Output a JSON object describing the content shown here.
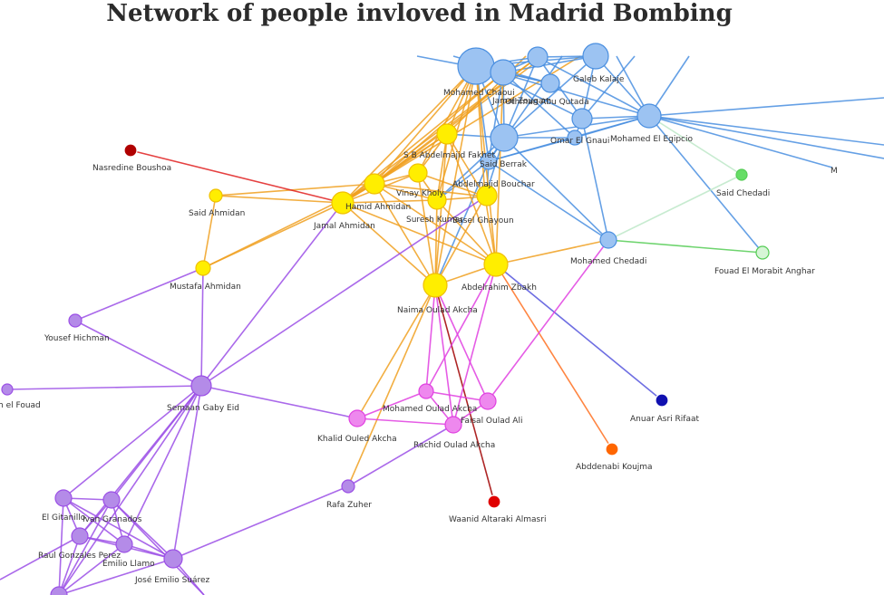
{
  "title": "Network of people invloved in Madrid Bombing",
  "group_colors": {
    "blue": "#4a8fe0",
    "blue_node": "#9cc3f2",
    "orange_edge": "#f0a020",
    "yellow": "#ffee00",
    "purple": "#9b4fe6",
    "purple_node": "#b48be8",
    "magenta": "#e040e0",
    "magenta_node": "#ee88ee",
    "red": "#e02020",
    "darkred": "#a00000",
    "green": "#66dd66",
    "lightgreen": "#bde8c8",
    "navy": "#1010b0",
    "orange": "#ff6600"
  },
  "nodes": [
    {
      "id": "mohamed_chaoui",
      "label": "Mohamed Chaoui",
      "fill": "#9cc3f2"
    },
    {
      "id": "jamal_zougam",
      "label": "Jamal Zougam",
      "fill": "#9cc3f2"
    },
    {
      "id": "othman_abu_qutada",
      "label": "Othman Abu Qutada",
      "fill": "#9cc3f2"
    },
    {
      "id": "galeb_kalaje",
      "label": "Galeb Kalaje",
      "fill": "#9cc3f2"
    },
    {
      "id": "top_blue",
      "label": "",
      "fill": "#9cc3f2"
    },
    {
      "id": "blue_mid",
      "label": "",
      "fill": "#9cc3f2"
    },
    {
      "id": "omar_el_gnaui",
      "label": "Omar El Gnaui",
      "fill": "#9cc3f2"
    },
    {
      "id": "mohamed_el_egipcio",
      "label": "Mohamed El Egipcio",
      "fill": "#9cc3f2"
    },
    {
      "id": "blue_center",
      "label": "",
      "fill": "#9cc3f2"
    },
    {
      "id": "said_berrak",
      "label": "Said Berrak",
      "fill": "#9cc3f2"
    },
    {
      "id": "mohamed_chedadi",
      "label": "Mohamed Chedadi",
      "fill": "#9cc3f2"
    },
    {
      "id": "said_chedadi",
      "label": "Said Chedadi",
      "fill": "#66dd66"
    },
    {
      "id": "fouad_el_morabit_anghar",
      "label": "Fouad El Morabit Anghar",
      "fill": "#d6f5d6"
    },
    {
      "id": "nasredine_boushoa",
      "label": "Nasredine Boushoa",
      "fill": "#b00000"
    },
    {
      "id": "sb_abdelmajid_fakhet",
      "label": "S B Abdelmajid Fakhet",
      "fill": "#ffee00"
    },
    {
      "id": "hamid_ahmidan",
      "label": "Hamid Ahmidan",
      "fill": "#ffee00"
    },
    {
      "id": "vinay_kholy",
      "label": "Vinay Kholy",
      "fill": "#ffee00"
    },
    {
      "id": "abdelmajid_bouchar",
      "label": "Abdelmajid Bouchar",
      "fill": "#ffee00"
    },
    {
      "id": "jamal_ahmidan",
      "label": "Jamal Ahmidan",
      "fill": "#ffee00"
    },
    {
      "id": "suresh_kumar",
      "label": "Suresh Kumar",
      "fill": "#ffee00"
    },
    {
      "id": "basel_ghayoun",
      "label": "Basel Ghayoun",
      "fill": "#ffee00"
    },
    {
      "id": "said_ahmidan",
      "label": "Said Ahmidan",
      "fill": "#ffee00"
    },
    {
      "id": "mustafa_ahmidan",
      "label": "Mustafa Ahmidan",
      "fill": "#ffee00"
    },
    {
      "id": "abdelrahim_zbakh",
      "label": "Abdelrahim Zbakh",
      "fill": "#ffee00"
    },
    {
      "id": "naima_oulad_akcha",
      "label": "Naima Oulad Akcha",
      "fill": "#ffee00"
    },
    {
      "id": "yousef_hichman",
      "label": "Yousef Hichman",
      "fill": "#b48be8"
    },
    {
      "id": "semaan_gaby_eid",
      "label": "Semaan Gaby Eid",
      "fill": "#b48be8"
    },
    {
      "id": "left_edge",
      "label": "h el Fouad",
      "fill": "#b48be8"
    },
    {
      "id": "mohamed_oulad_akcha",
      "label": "Mohamed Oulad Akcha",
      "fill": "#ee88ee"
    },
    {
      "id": "faisal_oulad_ali",
      "label": "Faisal Oulad Ali",
      "fill": "#ee88ee"
    },
    {
      "id": "khalid_ouled_akcha",
      "label": "Khalid Ouled Akcha",
      "fill": "#ee88ee"
    },
    {
      "id": "rachid_oulad_akcha",
      "label": "Rachid Oulad Akcha",
      "fill": "#ee88ee"
    },
    {
      "id": "anuar_asri_rifaat",
      "label": "Anuar Asri Rifaat",
      "fill": "#1010b0"
    },
    {
      "id": "abddenabi_koujma",
      "label": "Abddenabi Koujma",
      "fill": "#ff6600"
    },
    {
      "id": "rafa_zuher",
      "label": "Rafa Zuher",
      "fill": "#b48be8"
    },
    {
      "id": "waanid_altaraki_almasri",
      "label": "Waanid Altaraki Almasri",
      "fill": "#e00000"
    },
    {
      "id": "el_gitanillo",
      "label": "El Gitanillo",
      "fill": "#b48be8"
    },
    {
      "id": "ivan_granados",
      "label": "Ivan Granados",
      "fill": "#b48be8"
    },
    {
      "id": "raul_gonzales_perez",
      "label": "Raul Gonzales Perez",
      "fill": "#b48be8"
    },
    {
      "id": "emilio_llamo",
      "label": "Emilio Llamo",
      "fill": "#b48be8"
    },
    {
      "id": "jose_emilio_suarez",
      "label": "José Emilio Suárez",
      "fill": "#b48be8"
    },
    {
      "id": "bottom_left",
      "label": "",
      "fill": "#b48be8"
    },
    {
      "id": "offscreen_right",
      "label": "M",
      "fill": "#9cc3f2"
    }
  ],
  "edges": [
    [
      "mohamed_chaoui",
      "jamal_zougam",
      "#4a8fe0"
    ],
    [
      "mohamed_chaoui",
      "othman_abu_qutada",
      "#4a8fe0"
    ],
    [
      "mohamed_chaoui",
      "galeb_kalaje",
      "#4a8fe0"
    ],
    [
      "mohamed_chaoui",
      "top_blue",
      "#4a8fe0"
    ],
    [
      "mohamed_chaoui",
      "blue_mid",
      "#4a8fe0"
    ],
    [
      "mohamed_chaoui",
      "blue_center",
      "#4a8fe0"
    ],
    [
      "mohamed_chaoui",
      "mohamed_el_egipcio",
      "#4a8fe0"
    ],
    [
      "mohamed_chaoui",
      "said_berrak",
      "#4a8fe0"
    ],
    [
      "jamal_zougam",
      "blue_center",
      "#4a8fe0"
    ],
    [
      "jamal_zougam",
      "othman_abu_qutada",
      "#4a8fe0"
    ],
    [
      "jamal_zougam",
      "galeb_kalaje",
      "#4a8fe0"
    ],
    [
      "jamal_zougam",
      "omar_el_gnaui",
      "#4a8fe0"
    ],
    [
      "jamal_zougam",
      "said_berrak",
      "#4a8fe0"
    ],
    [
      "jamal_zougam",
      "top_blue",
      "#4a8fe0"
    ],
    [
      "top_blue",
      "galeb_kalaje",
      "#4a8fe0"
    ],
    [
      "top_blue",
      "blue_mid",
      "#4a8fe0"
    ],
    [
      "top_blue",
      "mohamed_el_egipcio",
      "#4a8fe0"
    ],
    [
      "top_blue",
      "blue_center",
      "#4a8fe0"
    ],
    [
      "galeb_kalaje",
      "blue_mid",
      "#4a8fe0"
    ],
    [
      "galeb_kalaje",
      "mohamed_el_egipcio",
      "#4a8fe0"
    ],
    [
      "galeb_kalaje",
      "blue_center",
      "#4a8fe0"
    ],
    [
      "blue_mid",
      "omar_el_gnaui",
      "#4a8fe0"
    ],
    [
      "blue_mid",
      "mohamed_el_egipcio",
      "#4a8fe0"
    ],
    [
      "blue_mid",
      "mohamed_chedadi",
      "#4a8fe0"
    ],
    [
      "omar_el_gnaui",
      "mohamed_el_egipcio",
      "#4a8fe0"
    ],
    [
      "omar_el_gnaui",
      "blue_center",
      "#4a8fe0"
    ],
    [
      "omar_el_gnaui",
      "said_berrak",
      "#4a8fe0"
    ],
    [
      "mohamed_el_egipcio",
      "blue_center",
      "#4a8fe0"
    ],
    [
      "mohamed_el_egipcio",
      "offscreen_right",
      "#4a8fe0"
    ],
    [
      "mohamed_el_egipcio",
      "fouad_el_morabit_anghar",
      "#4a8fe0"
    ],
    [
      "mohamed_el_egipcio",
      "said_berrak",
      "#4a8fe0"
    ],
    [
      "blue_center",
      "said_berrak",
      "#4a8fe0"
    ],
    [
      "blue_center",
      "mohamed_chedadi",
      "#4a8fe0"
    ],
    [
      "blue_center",
      "sb_abdelmajid_fakhet",
      "#4a8fe0"
    ],
    [
      "blue_center",
      "basel_ghayoun",
      "#4a8fe0"
    ],
    [
      "blue_center",
      "suresh_kumar",
      "#4a8fe0"
    ],
    [
      "said_berrak",
      "mohamed_chedadi",
      "#4a8fe0"
    ],
    [
      "said_berrak",
      "suresh_kumar",
      "#4a8fe0"
    ],
    [
      "said_berrak",
      "naima_oulad_akcha",
      "#4a8fe0"
    ],
    [
      "said_berrak",
      "abdelmajid_bouchar",
      "#4a8fe0"
    ],
    [
      "mohamed_chedadi",
      "said_chedadi",
      "#bde8c8"
    ],
    [
      "mohamed_chedadi",
      "fouad_el_morabit_anghar",
      "#55cc55"
    ],
    [
      "mohamed_el_egipcio",
      "said_chedadi",
      "#bde8c8"
    ],
    [
      "mohamed_chaoui",
      "sb_abdelmajid_fakhet",
      "#f0a020"
    ],
    [
      "mohamed_chaoui",
      "hamid_ahmidan",
      "#f0a020"
    ],
    [
      "mohamed_chaoui",
      "jamal_ahmidan",
      "#f0a020"
    ],
    [
      "mohamed_chaoui",
      "vinay_kholy",
      "#f0a020"
    ],
    [
      "mohamed_chaoui",
      "abdelrahim_zbakh",
      "#f0a020"
    ],
    [
      "mohamed_chaoui",
      "naima_oulad_akcha",
      "#f0a020"
    ],
    [
      "mohamed_chaoui",
      "basel_ghayoun",
      "#f0a020"
    ],
    [
      "mohamed_chaoui",
      "suresh_kumar",
      "#f0a020"
    ],
    [
      "jamal_zougam",
      "hamid_ahmidan",
      "#f0a020"
    ],
    [
      "jamal_zougam",
      "jamal_ahmidan",
      "#f0a020"
    ],
    [
      "jamal_zougam",
      "abdelrahim_zbakh",
      "#f0a020"
    ],
    [
      "top_blue",
      "hamid_ahmidan",
      "#f0a020"
    ],
    [
      "top_blue",
      "jamal_ahmidan",
      "#f0a020"
    ],
    [
      "sb_abdelmajid_fakhet",
      "hamid_ahmidan",
      "#f0a020"
    ],
    [
      "sb_abdelmajid_fakhet",
      "jamal_ahmidan",
      "#f0a020"
    ],
    [
      "sb_abdelmajid_fakhet",
      "vinay_kholy",
      "#f0a020"
    ],
    [
      "sb_abdelmajid_fakhet",
      "suresh_kumar",
      "#f0a020"
    ],
    [
      "sb_abdelmajid_fakhet",
      "basel_ghayoun",
      "#f0a020"
    ],
    [
      "sb_abdelmajid_fakhet",
      "abdelrahim_zbakh",
      "#f0a020"
    ],
    [
      "sb_abdelmajid_fakhet",
      "naima_oulad_akcha",
      "#f0a020"
    ],
    [
      "hamid_ahmidan",
      "jamal_ahmidan",
      "#f0a020"
    ],
    [
      "hamid_ahmidan",
      "vinay_kholy",
      "#f0a020"
    ],
    [
      "hamid_ahmidan",
      "suresh_kumar",
      "#f0a020"
    ],
    [
      "hamid_ahmidan",
      "naima_oulad_akcha",
      "#f0a020"
    ],
    [
      "hamid_ahmidan",
      "abdelrahim_zbakh",
      "#f0a020"
    ],
    [
      "hamid_ahmidan",
      "basel_ghayoun",
      "#f0a020"
    ],
    [
      "vinay_kholy",
      "suresh_kumar",
      "#f0a020"
    ],
    [
      "vinay_kholy",
      "basel_ghayoun",
      "#f0a020"
    ],
    [
      "vinay_kholy",
      "naima_oulad_akcha",
      "#f0a020"
    ],
    [
      "vinay_kholy",
      "jamal_ahmidan",
      "#f0a020"
    ],
    [
      "jamal_ahmidan",
      "suresh_kumar",
      "#f0a020"
    ],
    [
      "jamal_ahmidan",
      "said_ahmidan",
      "#f0a020"
    ],
    [
      "jamal_ahmidan",
      "mustafa_ahmidan",
      "#f0a020"
    ],
    [
      "jamal_ahmidan",
      "naima_oulad_akcha",
      "#f0a020"
    ],
    [
      "jamal_ahmidan",
      "abdelrahim_zbakh",
      "#f0a020"
    ],
    [
      "suresh_kumar",
      "basel_ghayoun",
      "#f0a020"
    ],
    [
      "suresh_kumar",
      "naima_oulad_akcha",
      "#f0a020"
    ],
    [
      "suresh_kumar",
      "abdelrahim_zbakh",
      "#f0a020"
    ],
    [
      "basel_ghayoun",
      "abdelrahim_zbakh",
      "#f0a020"
    ],
    [
      "basel_ghayoun",
      "naima_oulad_akcha",
      "#f0a020"
    ],
    [
      "abdelrahim_zbakh",
      "naima_oulad_akcha",
      "#f0a020"
    ],
    [
      "abdelrahim_zbakh",
      "mohamed_chedadi",
      "#f0a020"
    ],
    [
      "said_ahmidan",
      "mustafa_ahmidan",
      "#f0a020"
    ],
    [
      "said_ahmidan",
      "hamid_ahmidan",
      "#f0a020"
    ],
    [
      "mustafa_ahmidan",
      "hamid_ahmidan",
      "#f0a020"
    ],
    [
      "naima_oulad_akcha",
      "khalid_ouled_akcha",
      "#f0a020"
    ],
    [
      "naima_oulad_akcha",
      "rafa_zuher",
      "#f0a020"
    ],
    [
      "abdelrahim_zbakh",
      "abddenabi_koujma",
      "#ff7020"
    ],
    [
      "nasredine_boushoa",
      "jamal_ahmidan",
      "#e02020"
    ],
    [
      "naima_oulad_akcha",
      "waanid_altaraki_almasri",
      "#a00000"
    ],
    [
      "abdelrahim_zbakh",
      "anuar_asri_rifaat",
      "#5555dd"
    ],
    [
      "naima_oulad_akcha",
      "mohamed_oulad_akcha",
      "#e040e0"
    ],
    [
      "naima_oulad_akcha",
      "faisal_oulad_ali",
      "#e040e0"
    ],
    [
      "naima_oulad_akcha",
      "rachid_oulad_akcha",
      "#e040e0"
    ],
    [
      "abdelrahim_zbakh",
      "mohamed_oulad_akcha",
      "#e040e0"
    ],
    [
      "abdelrahim_zbakh",
      "rachid_oulad_akcha",
      "#e040e0"
    ],
    [
      "mohamed_oulad_akcha",
      "faisal_oulad_ali",
      "#e040e0"
    ],
    [
      "mohamed_oulad_akcha",
      "khalid_ouled_akcha",
      "#e040e0"
    ],
    [
      "mohamed_oulad_akcha",
      "rachid_oulad_akcha",
      "#e040e0"
    ],
    [
      "faisal_oulad_ali",
      "rachid_oulad_akcha",
      "#e040e0"
    ],
    [
      "faisal_oulad_ali",
      "mohamed_chedadi",
      "#e040e0"
    ],
    [
      "khalid_ouled_akcha",
      "rachid_oulad_akcha",
      "#e040e0"
    ],
    [
      "mustafa_ahmidan",
      "yousef_hichman",
      "#9b4fe6"
    ],
    [
      "mustafa_ahmidan",
      "semaan_gaby_eid",
      "#9b4fe6"
    ],
    [
      "yousef_hichman",
      "semaan_gaby_eid",
      "#9b4fe6"
    ],
    [
      "left_edge",
      "semaan_gaby_eid",
      "#9b4fe6"
    ],
    [
      "semaan_gaby_eid",
      "jamal_ahmidan",
      "#9b4fe6"
    ],
    [
      "semaan_gaby_eid",
      "khalid_ouled_akcha",
      "#9b4fe6"
    ],
    [
      "semaan_gaby_eid",
      "abdelmajid_bouchar",
      "#9b4fe6"
    ],
    [
      "semaan_gaby_eid",
      "el_gitanillo",
      "#9b4fe6"
    ],
    [
      "semaan_gaby_eid",
      "ivan_granados",
      "#9b4fe6"
    ],
    [
      "semaan_gaby_eid",
      "raul_gonzales_perez",
      "#9b4fe6"
    ],
    [
      "semaan_gaby_eid",
      "emilio_llamo",
      "#9b4fe6"
    ],
    [
      "semaan_gaby_eid",
      "jose_emilio_suarez",
      "#9b4fe6"
    ],
    [
      "semaan_gaby_eid",
      "bottom_left",
      "#9b4fe6"
    ],
    [
      "el_gitanillo",
      "ivan_granados",
      "#9b4fe6"
    ],
    [
      "el_gitanillo",
      "raul_gonzales_perez",
      "#9b4fe6"
    ],
    [
      "el_gitanillo",
      "emilio_llamo",
      "#9b4fe6"
    ],
    [
      "el_gitanillo",
      "jose_emilio_suarez",
      "#9b4fe6"
    ],
    [
      "el_gitanillo",
      "bottom_left",
      "#9b4fe6"
    ],
    [
      "ivan_granados",
      "raul_gonzales_perez",
      "#9b4fe6"
    ],
    [
      "ivan_granados",
      "emilio_llamo",
      "#9b4fe6"
    ],
    [
      "ivan_granados",
      "jose_emilio_suarez",
      "#9b4fe6"
    ],
    [
      "ivan_granados",
      "bottom_left",
      "#9b4fe6"
    ],
    [
      "raul_gonzales_perez",
      "emilio_llamo",
      "#9b4fe6"
    ],
    [
      "raul_gonzales_perez",
      "jose_emilio_suarez",
      "#9b4fe6"
    ],
    [
      "raul_gonzales_perez",
      "bottom_left",
      "#9b4fe6"
    ],
    [
      "emilio_llamo",
      "jose_emilio_suarez",
      "#9b4fe6"
    ],
    [
      "emilio_llamo",
      "bottom_left",
      "#9b4fe6"
    ],
    [
      "jose_emilio_suarez",
      "rafa_zuher",
      "#9b4fe6"
    ],
    [
      "rafa_zuher",
      "rachid_oulad_akcha",
      "#9b4fe6"
    ],
    [
      "jose_emilio_suarez",
      "bottom_left",
      "#9b4fe6"
    ]
  ]
}
